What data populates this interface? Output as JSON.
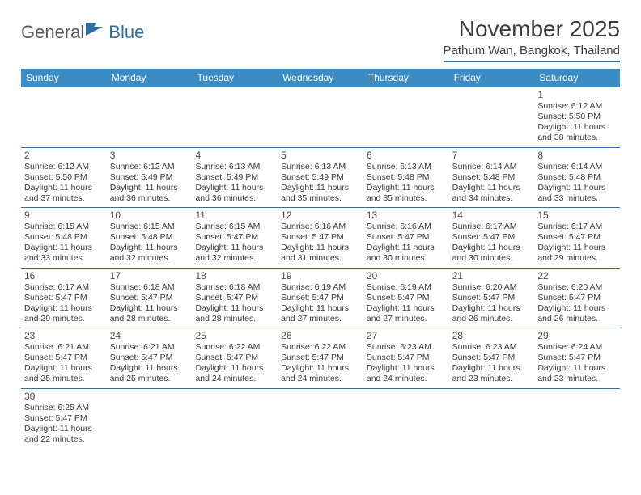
{
  "logo": {
    "text1": "General",
    "text2": "Blue"
  },
  "title": "November 2025",
  "location": "Pathum Wan, Bangkok, Thailand",
  "colors": {
    "header_bg": "#3b8bc4",
    "rule": "#2f6fa3",
    "text": "#3a3a3a",
    "day_text": "#4a4a4a"
  },
  "weekdays": [
    "Sunday",
    "Monday",
    "Tuesday",
    "Wednesday",
    "Thursday",
    "Friday",
    "Saturday"
  ],
  "weeks": [
    [
      null,
      null,
      null,
      null,
      null,
      null,
      {
        "d": "1",
        "sr": "Sunrise: 6:12 AM",
        "ss": "Sunset: 5:50 PM",
        "dl1": "Daylight: 11 hours",
        "dl2": "and 38 minutes."
      }
    ],
    [
      {
        "d": "2",
        "sr": "Sunrise: 6:12 AM",
        "ss": "Sunset: 5:50 PM",
        "dl1": "Daylight: 11 hours",
        "dl2": "and 37 minutes."
      },
      {
        "d": "3",
        "sr": "Sunrise: 6:12 AM",
        "ss": "Sunset: 5:49 PM",
        "dl1": "Daylight: 11 hours",
        "dl2": "and 36 minutes."
      },
      {
        "d": "4",
        "sr": "Sunrise: 6:13 AM",
        "ss": "Sunset: 5:49 PM",
        "dl1": "Daylight: 11 hours",
        "dl2": "and 36 minutes."
      },
      {
        "d": "5",
        "sr": "Sunrise: 6:13 AM",
        "ss": "Sunset: 5:49 PM",
        "dl1": "Daylight: 11 hours",
        "dl2": "and 35 minutes."
      },
      {
        "d": "6",
        "sr": "Sunrise: 6:13 AM",
        "ss": "Sunset: 5:48 PM",
        "dl1": "Daylight: 11 hours",
        "dl2": "and 35 minutes."
      },
      {
        "d": "7",
        "sr": "Sunrise: 6:14 AM",
        "ss": "Sunset: 5:48 PM",
        "dl1": "Daylight: 11 hours",
        "dl2": "and 34 minutes."
      },
      {
        "d": "8",
        "sr": "Sunrise: 6:14 AM",
        "ss": "Sunset: 5:48 PM",
        "dl1": "Daylight: 11 hours",
        "dl2": "and 33 minutes."
      }
    ],
    [
      {
        "d": "9",
        "sr": "Sunrise: 6:15 AM",
        "ss": "Sunset: 5:48 PM",
        "dl1": "Daylight: 11 hours",
        "dl2": "and 33 minutes."
      },
      {
        "d": "10",
        "sr": "Sunrise: 6:15 AM",
        "ss": "Sunset: 5:48 PM",
        "dl1": "Daylight: 11 hours",
        "dl2": "and 32 minutes."
      },
      {
        "d": "11",
        "sr": "Sunrise: 6:15 AM",
        "ss": "Sunset: 5:47 PM",
        "dl1": "Daylight: 11 hours",
        "dl2": "and 32 minutes."
      },
      {
        "d": "12",
        "sr": "Sunrise: 6:16 AM",
        "ss": "Sunset: 5:47 PM",
        "dl1": "Daylight: 11 hours",
        "dl2": "and 31 minutes."
      },
      {
        "d": "13",
        "sr": "Sunrise: 6:16 AM",
        "ss": "Sunset: 5:47 PM",
        "dl1": "Daylight: 11 hours",
        "dl2": "and 30 minutes."
      },
      {
        "d": "14",
        "sr": "Sunrise: 6:17 AM",
        "ss": "Sunset: 5:47 PM",
        "dl1": "Daylight: 11 hours",
        "dl2": "and 30 minutes."
      },
      {
        "d": "15",
        "sr": "Sunrise: 6:17 AM",
        "ss": "Sunset: 5:47 PM",
        "dl1": "Daylight: 11 hours",
        "dl2": "and 29 minutes."
      }
    ],
    [
      {
        "d": "16",
        "sr": "Sunrise: 6:17 AM",
        "ss": "Sunset: 5:47 PM",
        "dl1": "Daylight: 11 hours",
        "dl2": "and 29 minutes."
      },
      {
        "d": "17",
        "sr": "Sunrise: 6:18 AM",
        "ss": "Sunset: 5:47 PM",
        "dl1": "Daylight: 11 hours",
        "dl2": "and 28 minutes."
      },
      {
        "d": "18",
        "sr": "Sunrise: 6:18 AM",
        "ss": "Sunset: 5:47 PM",
        "dl1": "Daylight: 11 hours",
        "dl2": "and 28 minutes."
      },
      {
        "d": "19",
        "sr": "Sunrise: 6:19 AM",
        "ss": "Sunset: 5:47 PM",
        "dl1": "Daylight: 11 hours",
        "dl2": "and 27 minutes."
      },
      {
        "d": "20",
        "sr": "Sunrise: 6:19 AM",
        "ss": "Sunset: 5:47 PM",
        "dl1": "Daylight: 11 hours",
        "dl2": "and 27 minutes."
      },
      {
        "d": "21",
        "sr": "Sunrise: 6:20 AM",
        "ss": "Sunset: 5:47 PM",
        "dl1": "Daylight: 11 hours",
        "dl2": "and 26 minutes."
      },
      {
        "d": "22",
        "sr": "Sunrise: 6:20 AM",
        "ss": "Sunset: 5:47 PM",
        "dl1": "Daylight: 11 hours",
        "dl2": "and 26 minutes."
      }
    ],
    [
      {
        "d": "23",
        "sr": "Sunrise: 6:21 AM",
        "ss": "Sunset: 5:47 PM",
        "dl1": "Daylight: 11 hours",
        "dl2": "and 25 minutes."
      },
      {
        "d": "24",
        "sr": "Sunrise: 6:21 AM",
        "ss": "Sunset: 5:47 PM",
        "dl1": "Daylight: 11 hours",
        "dl2": "and 25 minutes."
      },
      {
        "d": "25",
        "sr": "Sunrise: 6:22 AM",
        "ss": "Sunset: 5:47 PM",
        "dl1": "Daylight: 11 hours",
        "dl2": "and 24 minutes."
      },
      {
        "d": "26",
        "sr": "Sunrise: 6:22 AM",
        "ss": "Sunset: 5:47 PM",
        "dl1": "Daylight: 11 hours",
        "dl2": "and 24 minutes."
      },
      {
        "d": "27",
        "sr": "Sunrise: 6:23 AM",
        "ss": "Sunset: 5:47 PM",
        "dl1": "Daylight: 11 hours",
        "dl2": "and 24 minutes."
      },
      {
        "d": "28",
        "sr": "Sunrise: 6:23 AM",
        "ss": "Sunset: 5:47 PM",
        "dl1": "Daylight: 11 hours",
        "dl2": "and 23 minutes."
      },
      {
        "d": "29",
        "sr": "Sunrise: 6:24 AM",
        "ss": "Sunset: 5:47 PM",
        "dl1": "Daylight: 11 hours",
        "dl2": "and 23 minutes."
      }
    ],
    [
      {
        "d": "30",
        "sr": "Sunrise: 6:25 AM",
        "ss": "Sunset: 5:47 PM",
        "dl1": "Daylight: 11 hours",
        "dl2": "and 22 minutes."
      },
      null,
      null,
      null,
      null,
      null,
      null
    ]
  ]
}
